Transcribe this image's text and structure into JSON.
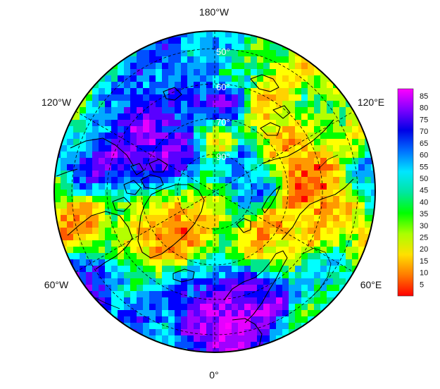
{
  "map": {
    "projection": "north-polar-stereographic",
    "longitude_labels": {
      "top": "180°W",
      "bottom": "0°",
      "upper_left": "120°W",
      "upper_right": "120°E",
      "lower_left": "60°W",
      "lower_right": "60°E"
    },
    "latitude_labels": [
      "50°",
      "60°",
      "70°",
      "90°"
    ],
    "colorbar": {
      "ticks": [
        85,
        80,
        75,
        70,
        65,
        60,
        55,
        50,
        45,
        40,
        35,
        30,
        25,
        20,
        15,
        10,
        5
      ],
      "range": [
        0,
        88
      ],
      "colors": [
        "#ff0000",
        "#ff5a00",
        "#ff9900",
        "#ffd200",
        "#ffff00",
        "#b4ff00",
        "#00ff00",
        "#00e68c",
        "#00ffff",
        "#00aaff",
        "#0050ff",
        "#0000ff",
        "#5a00ff",
        "#a000ff",
        "#e600ff",
        "#ff00ff"
      ]
    },
    "colors": {
      "graticule": "#000000",
      "coastline": "#000000",
      "label_on_map": "#ffffff"
    }
  }
}
